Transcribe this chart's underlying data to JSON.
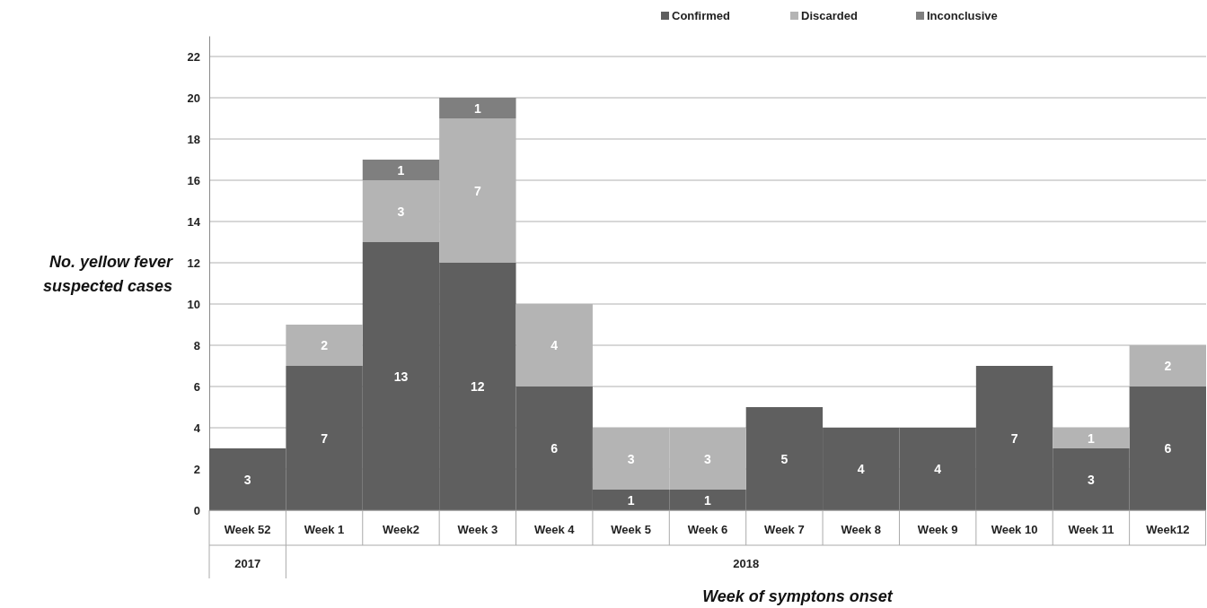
{
  "chart_data": {
    "type": "bar",
    "stacked": true,
    "xlabel": "Week of symptons onset",
    "ylabel": "No. yellow fever suspected cases",
    "categories": [
      "Week 52",
      "Week 1",
      "Week2",
      "Week 3",
      "Week 4",
      "Week 5",
      "Week 6",
      "Week 7",
      "Week 8",
      "Week 9",
      "Week 10",
      "Week 11",
      "Week12"
    ],
    "series": [
      {
        "name": "Confirmed",
        "color": "#5f5f5f",
        "values": [
          3,
          7,
          13,
          12,
          6,
          1,
          1,
          5,
          4,
          4,
          7,
          3,
          6
        ]
      },
      {
        "name": "Discarded",
        "color": "#b4b4b4",
        "values": [
          null,
          2,
          3,
          7,
          4,
          3,
          3,
          null,
          null,
          null,
          null,
          1,
          2
        ]
      },
      {
        "name": "Inconclusive",
        "color": "#7f7f7f",
        "values": [
          null,
          null,
          1,
          1,
          null,
          null,
          null,
          null,
          null,
          null,
          null,
          null,
          null
        ]
      }
    ],
    "ylim": [
      0,
      23
    ],
    "yticks": [
      0,
      2,
      4,
      6,
      8,
      10,
      12,
      14,
      16,
      18,
      20,
      22
    ],
    "grid": "y",
    "legend": "top right",
    "data_labels": true,
    "annotations": [
      "2017",
      "2018"
    ]
  }
}
